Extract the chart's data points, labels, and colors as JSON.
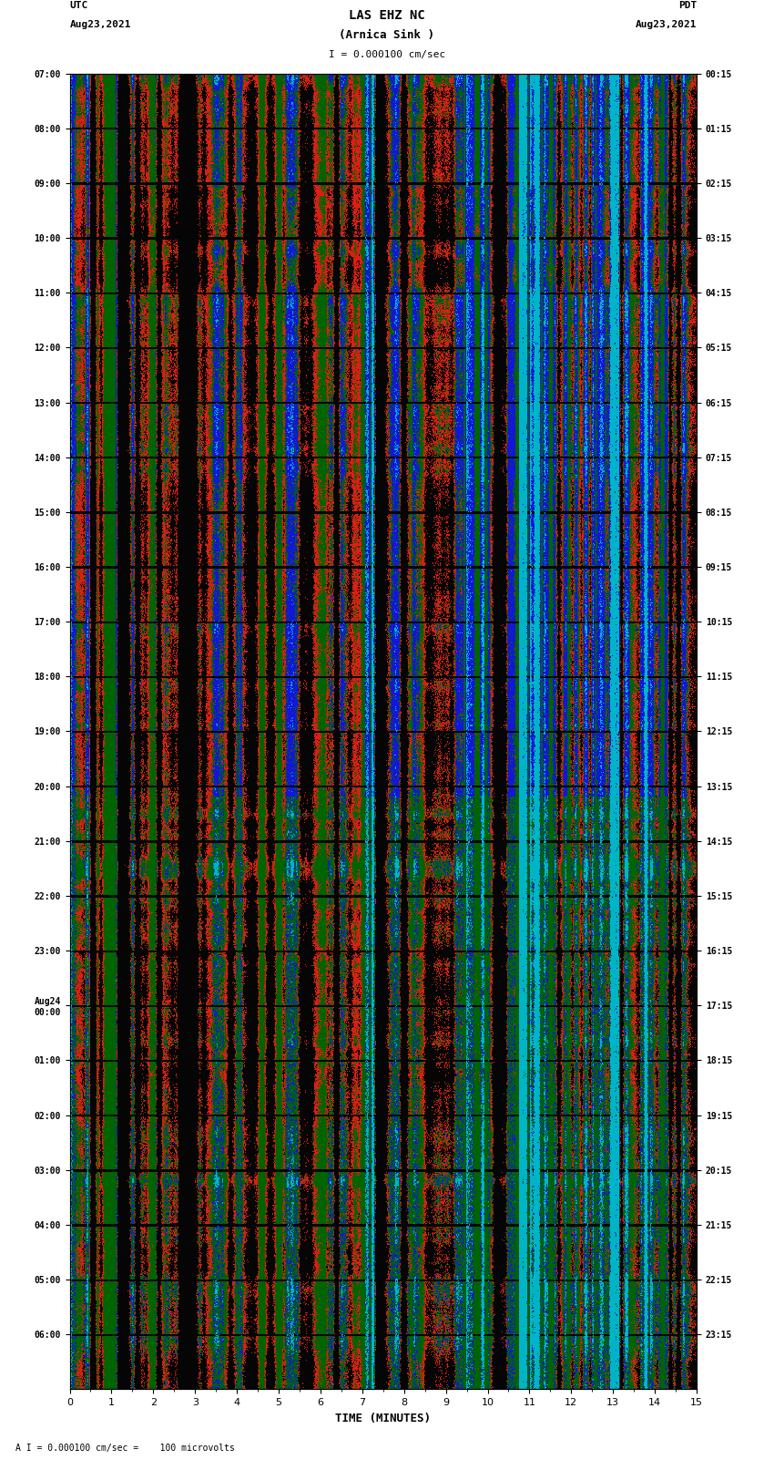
{
  "title_line1": "LAS EHZ NC",
  "title_line2": "(Arnica Sink )",
  "scale_text": "I = 0.000100 cm/sec",
  "utc_label": "UTC",
  "utc_date": "Aug23,2021",
  "pdt_label": "PDT",
  "pdt_date": "Aug23,2021",
  "footer_text": "A I = 0.000100 cm/sec =    100 microvolts",
  "xlabel": "TIME (MINUTES)",
  "left_ticks": [
    "07:00",
    "08:00",
    "09:00",
    "10:00",
    "11:00",
    "12:00",
    "13:00",
    "14:00",
    "15:00",
    "16:00",
    "17:00",
    "18:00",
    "19:00",
    "20:00",
    "21:00",
    "22:00",
    "23:00",
    "Aug24\n00:00",
    "01:00",
    "02:00",
    "03:00",
    "04:00",
    "05:00",
    "06:00"
  ],
  "right_ticks": [
    "00:15",
    "01:15",
    "02:15",
    "03:15",
    "04:15",
    "05:15",
    "06:15",
    "07:15",
    "08:15",
    "09:15",
    "10:15",
    "11:15",
    "12:15",
    "13:15",
    "14:15",
    "15:15",
    "16:15",
    "17:15",
    "18:15",
    "19:15",
    "20:15",
    "21:15",
    "22:15",
    "23:15"
  ],
  "n_rows": 24,
  "minutes_per_row": 60,
  "bg_color_rgb": [
    0,
    100,
    0
  ],
  "fig_width": 8.5,
  "fig_height": 16.13,
  "dpi": 100,
  "colors": {
    "red": [
      220,
      30,
      20
    ],
    "blue": [
      20,
      20,
      220
    ],
    "black": [
      5,
      5,
      5
    ],
    "green": [
      0,
      100,
      0
    ],
    "darkgreen": [
      0,
      80,
      0
    ],
    "cyan": [
      0,
      180,
      200
    ]
  }
}
